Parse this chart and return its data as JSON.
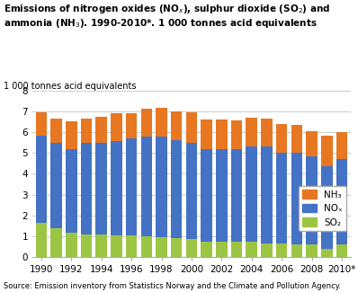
{
  "years": [
    1990,
    1991,
    1992,
    1993,
    1994,
    1995,
    1996,
    1997,
    1998,
    1999,
    2000,
    2001,
    2002,
    2003,
    2004,
    2005,
    2006,
    2007,
    2008,
    2009,
    2010
  ],
  "SO2": [
    1.65,
    1.38,
    1.15,
    1.1,
    1.1,
    1.05,
    1.05,
    0.98,
    0.97,
    0.9,
    0.85,
    0.75,
    0.72,
    0.72,
    0.72,
    0.65,
    0.65,
    0.62,
    0.6,
    0.4,
    0.6
  ],
  "NOx": [
    4.2,
    4.1,
    4.05,
    4.4,
    4.4,
    4.5,
    4.65,
    4.82,
    4.82,
    4.7,
    4.65,
    4.45,
    4.47,
    4.47,
    4.58,
    4.65,
    4.38,
    4.38,
    4.25,
    3.98,
    4.1
  ],
  "NH3": [
    1.1,
    1.18,
    1.32,
    1.15,
    1.25,
    1.35,
    1.23,
    1.32,
    1.38,
    1.4,
    1.45,
    1.4,
    1.4,
    1.38,
    1.38,
    1.35,
    1.35,
    1.35,
    1.2,
    1.45,
    1.32
  ],
  "colors": {
    "SO2": "#9dc544",
    "NOx": "#4472c4",
    "NH3": "#e87722"
  },
  "ylabel": "1 000 tonnes acid equivalents",
  "ylim": [
    0,
    8
  ],
  "yticks": [
    0,
    1,
    2,
    3,
    4,
    5,
    6,
    7,
    8
  ],
  "source": "Source: Emission inventory from Statistics Norway and the Climate and Pollution Agency.",
  "legend_labels": [
    "NH₃",
    "NOₓ",
    "SO₂"
  ],
  "legend_colors": [
    "#e87722",
    "#4472c4",
    "#9dc544"
  ],
  "background_color": "#ffffff",
  "grid_color": "#cccccc",
  "title": "Emissions of nitrogen oxides (NO$_x$), sulphur dioxide (SO$_2$) and\nammonia (NH$_3$). 1990-2010*. 1 000 tonnes acid equivalents"
}
